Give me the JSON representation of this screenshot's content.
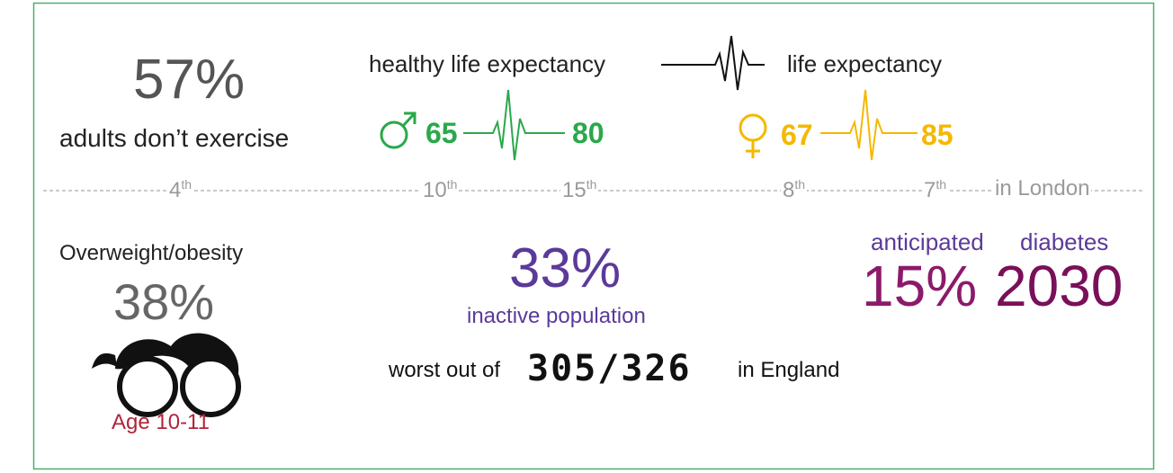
{
  "exercise": {
    "value": "57%",
    "label": "adults don’t exercise"
  },
  "life_expectancy": {
    "healthy_label": "healthy life expectancy",
    "total_label": "life expectancy",
    "male": {
      "healthy": 65,
      "total": 80
    },
    "female": {
      "healthy": 67,
      "total": 85
    }
  },
  "rankings": {
    "items": [
      {
        "number": "4",
        "suffix": "th"
      },
      {
        "number": "10",
        "suffix": "th"
      },
      {
        "number": "15",
        "suffix": "th"
      },
      {
        "number": "8",
        "suffix": "th"
      },
      {
        "number": "7",
        "suffix": "th"
      }
    ],
    "scope": "in London"
  },
  "obesity": {
    "label": "Overweight/obesity",
    "value": "38%",
    "age": "Age 10-11"
  },
  "inactive": {
    "value": "33%",
    "label": "inactive population",
    "prefix": "worst out of",
    "rank": "305/326",
    "suffix": "in England"
  },
  "diabetes": {
    "label_left": "anticipated",
    "label_right": "diabetes",
    "value": "15%",
    "year": "2030"
  }
}
